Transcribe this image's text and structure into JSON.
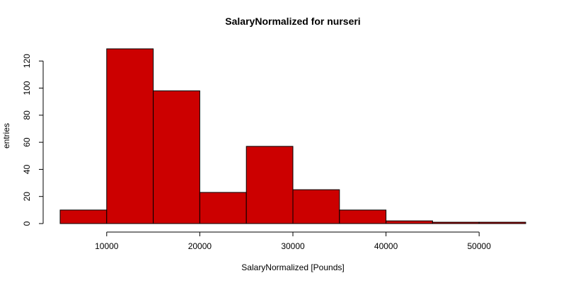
{
  "chart_data": {
    "type": "bar",
    "title": "SalaryNormalized for nurseri",
    "xlabel": "SalaryNormalized [Pounds]",
    "ylabel": "entries",
    "bar_color": "#cc0000",
    "bins": [
      {
        "start": 5000,
        "end": 10000,
        "count": 10
      },
      {
        "start": 10000,
        "end": 15000,
        "count": 129
      },
      {
        "start": 15000,
        "end": 20000,
        "count": 98
      },
      {
        "start": 20000,
        "end": 25000,
        "count": 23
      },
      {
        "start": 25000,
        "end": 30000,
        "count": 57
      },
      {
        "start": 30000,
        "end": 35000,
        "count": 25
      },
      {
        "start": 35000,
        "end": 40000,
        "count": 10
      },
      {
        "start": 40000,
        "end": 45000,
        "count": 2
      },
      {
        "start": 45000,
        "end": 50000,
        "count": 1
      },
      {
        "start": 50000,
        "end": 55000,
        "count": 1
      }
    ],
    "x_ticks": [
      10000,
      20000,
      30000,
      40000,
      50000
    ],
    "y_ticks": [
      0,
      20,
      40,
      60,
      80,
      100,
      120
    ],
    "xlim": [
      5000,
      55000
    ],
    "ylim": [
      0,
      129
    ],
    "grid": false,
    "legend": "none"
  }
}
